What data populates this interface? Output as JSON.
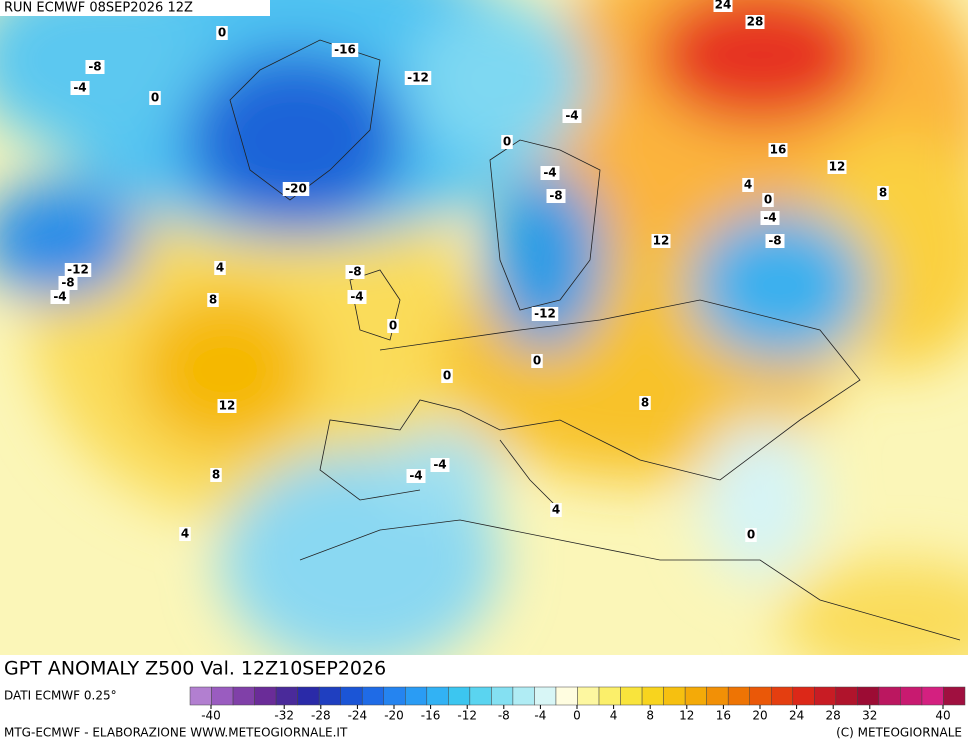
{
  "header": {
    "run": "RUN ECMWF 08SEP2026 12Z"
  },
  "map": {
    "contour_labels": [
      24,
      28,
      0,
      -8,
      -4,
      0,
      -16,
      -12,
      -4,
      0,
      -4,
      -8,
      16,
      12,
      4,
      0,
      8,
      -4,
      -8,
      12,
      -20,
      -12,
      -8,
      -4,
      4,
      8,
      -8,
      -4,
      0,
      -12,
      0,
      0,
      12,
      8,
      -4,
      -4,
      8,
      4,
      4,
      0
    ]
  },
  "footer": {
    "title": "GPT ANOMALY Z500 Val. 12Z10SEP2026",
    "source": "DATI ECMWF 0.25°",
    "credit": "MTG-ECMWF - ELABORAZIONE WWW.METEOGIORNALE.IT",
    "copyright": "(C) METEOGIORNALE"
  },
  "colorbar": {
    "ticks": [
      -40,
      -32,
      -28,
      -24,
      -20,
      -16,
      -12,
      -8,
      -4,
      0,
      4,
      8,
      12,
      16,
      20,
      24,
      28,
      32,
      40
    ]
  }
}
